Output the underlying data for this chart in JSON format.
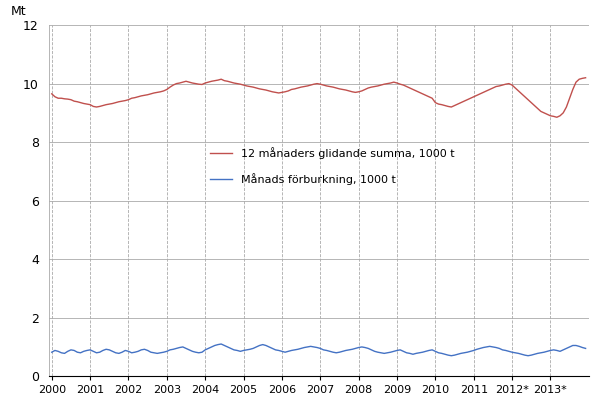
{
  "title": "",
  "ylabel": "Mt",
  "ylim": [
    0,
    12
  ],
  "yticks": [
    0,
    2,
    4,
    6,
    8,
    10,
    12
  ],
  "xtick_labels": [
    "2000",
    "2001",
    "2002",
    "2003",
    "2004",
    "2005",
    "2006",
    "2007",
    "2008",
    "2009",
    "2010",
    "2011",
    "2012*",
    "2013*"
  ],
  "xtick_positions": [
    0,
    12,
    24,
    36,
    48,
    60,
    72,
    84,
    96,
    108,
    120,
    132,
    144,
    156
  ],
  "red_color": "#c0504d",
  "blue_color": "#4472c4",
  "legend_red": "12 månaders glidande summa, 1000 t",
  "legend_blue": "Månads förburkning, 1000 t",
  "background_color": "#ffffff",
  "red_series": [
    9.65,
    9.55,
    9.5,
    9.5,
    9.48,
    9.47,
    9.45,
    9.4,
    9.38,
    9.35,
    9.32,
    9.3,
    9.28,
    9.22,
    9.2,
    9.22,
    9.25,
    9.28,
    9.3,
    9.32,
    9.35,
    9.38,
    9.4,
    9.42,
    9.45,
    9.5,
    9.52,
    9.55,
    9.58,
    9.6,
    9.62,
    9.65,
    9.68,
    9.7,
    9.72,
    9.75,
    9.8,
    9.88,
    9.95,
    10.0,
    10.02,
    10.05,
    10.08,
    10.05,
    10.02,
    10.0,
    9.98,
    9.97,
    10.02,
    10.05,
    10.08,
    10.1,
    10.12,
    10.15,
    10.1,
    10.08,
    10.05,
    10.02,
    10.0,
    9.98,
    9.95,
    9.92,
    9.9,
    9.88,
    9.85,
    9.82,
    9.8,
    9.78,
    9.75,
    9.72,
    9.7,
    9.68,
    9.7,
    9.72,
    9.75,
    9.8,
    9.82,
    9.85,
    9.88,
    9.9,
    9.92,
    9.95,
    9.98,
    10.0,
    9.98,
    9.95,
    9.92,
    9.9,
    9.88,
    9.85,
    9.82,
    9.8,
    9.78,
    9.75,
    9.72,
    9.7,
    9.72,
    9.75,
    9.8,
    9.85,
    9.88,
    9.9,
    9.92,
    9.95,
    9.98,
    10.0,
    10.02,
    10.05,
    10.02,
    9.98,
    9.95,
    9.9,
    9.85,
    9.8,
    9.75,
    9.7,
    9.65,
    9.6,
    9.55,
    9.5,
    9.35,
    9.3,
    9.28,
    9.25,
    9.22,
    9.2,
    9.25,
    9.3,
    9.35,
    9.4,
    9.45,
    9.5,
    9.55,
    9.6,
    9.65,
    9.7,
    9.75,
    9.8,
    9.85,
    9.9,
    9.92,
    9.95,
    9.98,
    10.0,
    9.95,
    9.85,
    9.75,
    9.65,
    9.55,
    9.45,
    9.35,
    9.25,
    9.15,
    9.05,
    9.0,
    8.95,
    8.9,
    8.88,
    8.85,
    8.9,
    9.0,
    9.2,
    9.5,
    9.8,
    10.05,
    10.15,
    10.18,
    10.2
  ],
  "blue_series": [
    0.82,
    0.88,
    0.85,
    0.8,
    0.78,
    0.85,
    0.9,
    0.88,
    0.82,
    0.8,
    0.85,
    0.88,
    0.9,
    0.85,
    0.8,
    0.82,
    0.88,
    0.92,
    0.9,
    0.85,
    0.8,
    0.78,
    0.82,
    0.88,
    0.85,
    0.8,
    0.82,
    0.85,
    0.9,
    0.92,
    0.88,
    0.82,
    0.8,
    0.78,
    0.8,
    0.82,
    0.85,
    0.9,
    0.92,
    0.95,
    0.98,
    1.0,
    0.95,
    0.9,
    0.85,
    0.82,
    0.8,
    0.82,
    0.9,
    0.95,
    1.0,
    1.05,
    1.08,
    1.1,
    1.05,
    1.0,
    0.95,
    0.9,
    0.88,
    0.85,
    0.88,
    0.9,
    0.92,
    0.95,
    1.0,
    1.05,
    1.08,
    1.05,
    1.0,
    0.95,
    0.9,
    0.88,
    0.85,
    0.82,
    0.85,
    0.88,
    0.9,
    0.92,
    0.95,
    0.98,
    1.0,
    1.02,
    1.0,
    0.98,
    0.95,
    0.9,
    0.88,
    0.85,
    0.82,
    0.8,
    0.82,
    0.85,
    0.88,
    0.9,
    0.92,
    0.95,
    0.98,
    1.0,
    0.98,
    0.95,
    0.9,
    0.85,
    0.82,
    0.8,
    0.78,
    0.8,
    0.82,
    0.85,
    0.88,
    0.9,
    0.85,
    0.8,
    0.78,
    0.75,
    0.78,
    0.8,
    0.82,
    0.85,
    0.88,
    0.9,
    0.85,
    0.8,
    0.78,
    0.75,
    0.72,
    0.7,
    0.72,
    0.75,
    0.78,
    0.8,
    0.82,
    0.85,
    0.88,
    0.92,
    0.95,
    0.98,
    1.0,
    1.02,
    1.0,
    0.98,
    0.95,
    0.9,
    0.88,
    0.85,
    0.82,
    0.8,
    0.78,
    0.75,
    0.72,
    0.7,
    0.72,
    0.75,
    0.78,
    0.8,
    0.82,
    0.85,
    0.88,
    0.9,
    0.88,
    0.85,
    0.9,
    0.95,
    1.0,
    1.05,
    1.05,
    1.02,
    0.98,
    0.95
  ]
}
